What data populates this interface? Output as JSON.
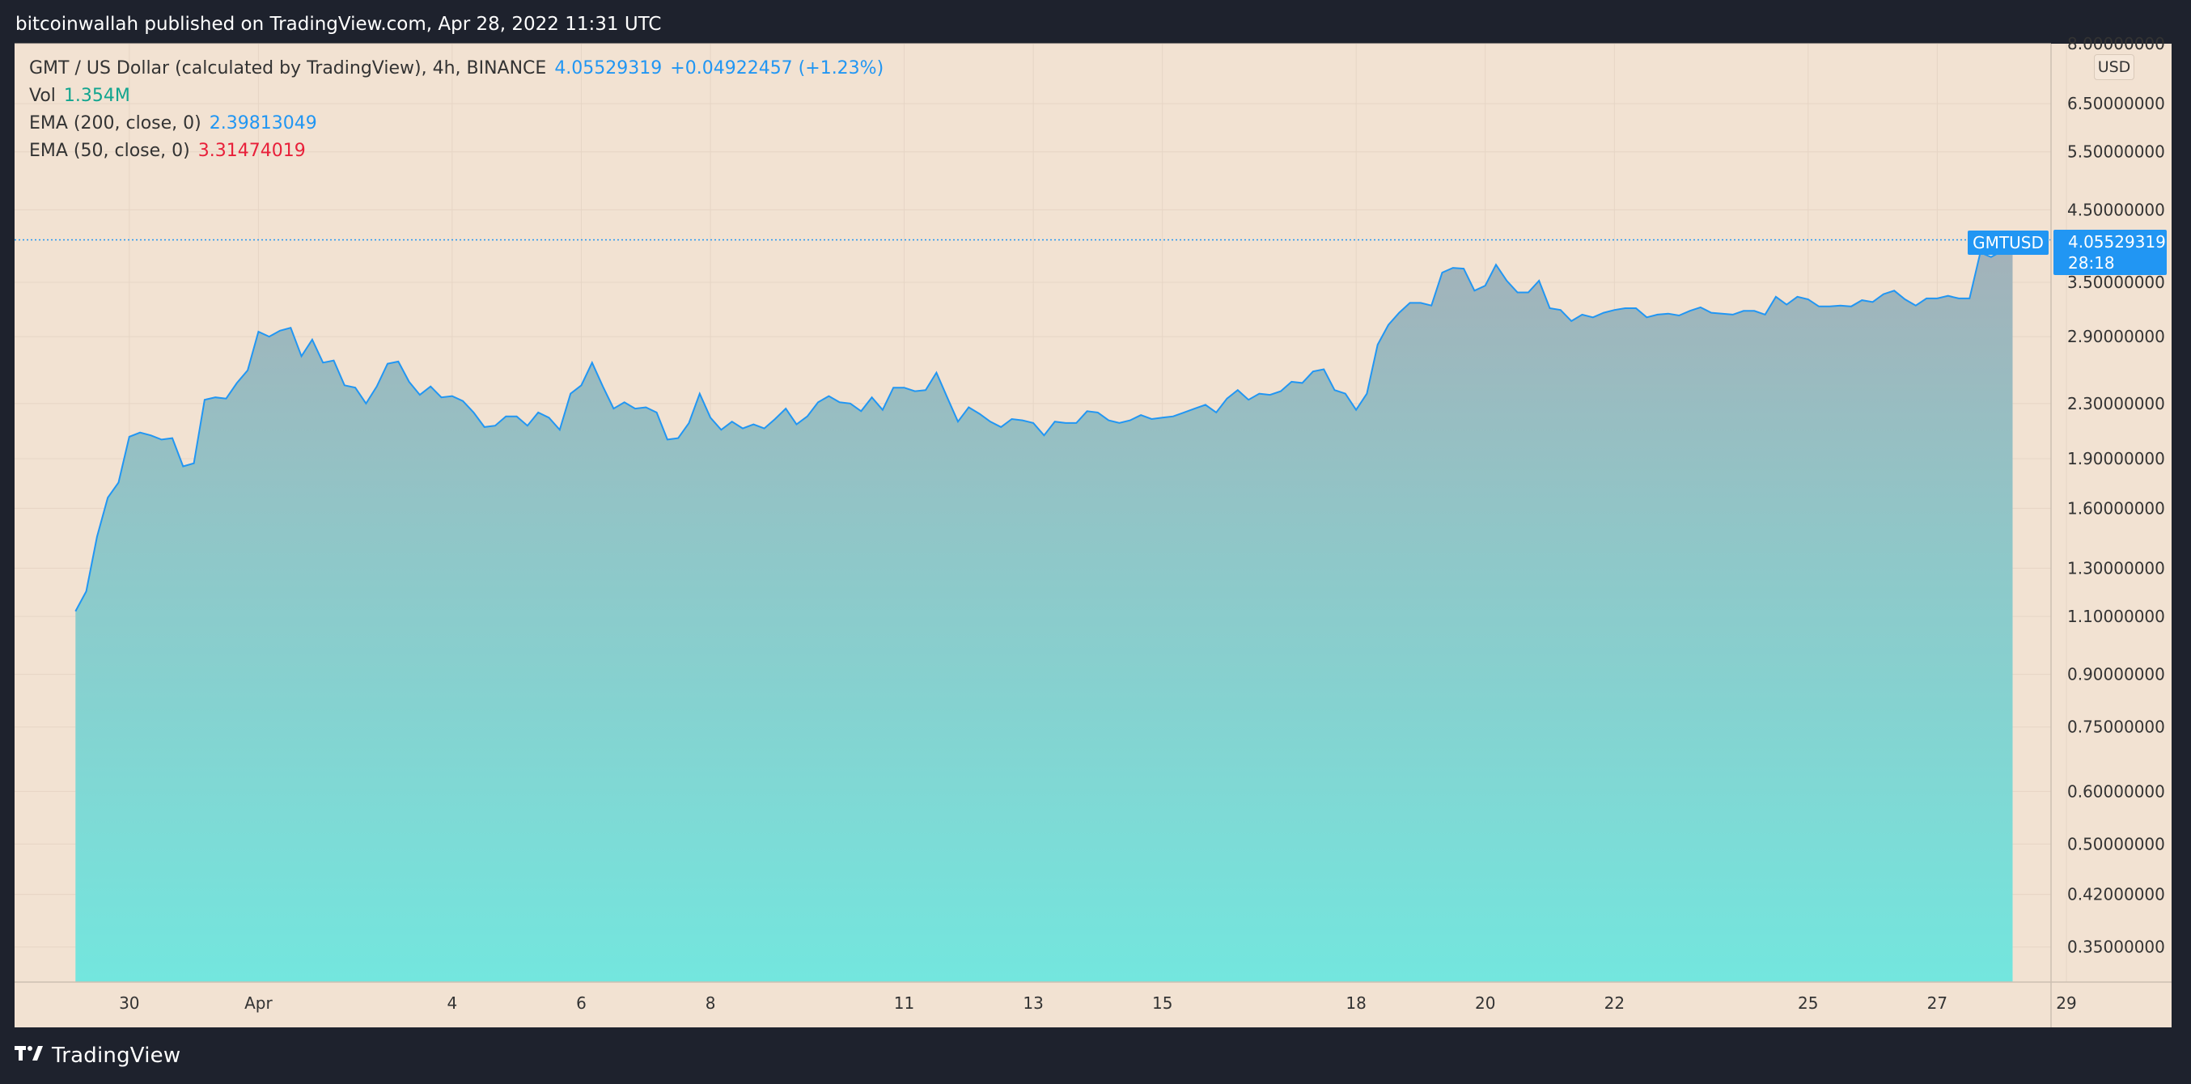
{
  "header": {
    "published_by": "bitcoinwallah published on TradingView.com, Apr 28, 2022 11:31 UTC"
  },
  "legend": {
    "symbol_line": "GMT / US Dollar (calculated by TradingView), 4h, BINANCE",
    "price": "4.05529319",
    "change": "+0.04922457 (+1.23%)",
    "vol_label": "Vol",
    "vol_value": "1.354M",
    "ema200_label": "EMA (200, close, 0)",
    "ema200_value": "2.39813049",
    "ema50_label": "EMA (50, close, 0)",
    "ema50_value": "3.31474019"
  },
  "price_axis": {
    "currency_button": "USD",
    "ticks": [
      "8.00000000",
      "6.50000000",
      "5.50000000",
      "4.50000000",
      "3.50000000",
      "2.90000000",
      "2.30000000",
      "1.90000000",
      "1.60000000",
      "1.30000000",
      "1.10000000",
      "0.90000000",
      "0.75000000",
      "0.60000000",
      "0.50000000",
      "0.42000000",
      "0.35000000"
    ]
  },
  "time_axis": {
    "ticks": [
      "30",
      "Apr",
      "4",
      "6",
      "8",
      "11",
      "13",
      "15",
      "18",
      "20",
      "22",
      "25",
      "27",
      "29"
    ]
  },
  "last_price": {
    "symbol": "GMTUSD",
    "price": "4.05529319",
    "countdown": "28:18"
  },
  "colors": {
    "background": "#f2e2d2",
    "line": "#2196f3",
    "area_top": "#a3b1b9",
    "area_bottom": "#73e6de",
    "frame": "#1e222d",
    "ema200": "#2196f3",
    "ema50": "#e8203a",
    "volume": "#12a58f"
  },
  "footer": {
    "brand": "TradingView",
    "logo_icon": "tradingview-logo-icon"
  },
  "chart_data": {
    "type": "area",
    "title": "GMT / US Dollar (calculated by TradingView), 4h, BINANCE",
    "y_scale": "log",
    "ylim": [
      0.31,
      8.0
    ],
    "x_range": [
      "2022-03-29",
      "2022-04-29"
    ],
    "x_format": "date-time",
    "series": [
      {
        "name": "GMTUSD",
        "points": [
          [
            "2022-03-29 04:00",
            1.12
          ],
          [
            "2022-03-29 08:00",
            1.2
          ],
          [
            "2022-03-29 12:00",
            1.45
          ],
          [
            "2022-03-29 16:00",
            1.66
          ],
          [
            "2022-03-29 20:00",
            1.75
          ],
          [
            "2022-03-30 00:00",
            2.05
          ],
          [
            "2022-03-30 04:00",
            2.08
          ],
          [
            "2022-03-30 08:00",
            2.06
          ],
          [
            "2022-03-30 12:00",
            2.03
          ],
          [
            "2022-03-30 16:00",
            2.04
          ],
          [
            "2022-03-30 20:00",
            1.85
          ],
          [
            "2022-03-31 00:00",
            1.87
          ],
          [
            "2022-03-31 04:00",
            2.33
          ],
          [
            "2022-03-31 08:00",
            2.35
          ],
          [
            "2022-03-31 12:00",
            2.34
          ],
          [
            "2022-03-31 16:00",
            2.47
          ],
          [
            "2022-03-31 20:00",
            2.58
          ],
          [
            "2022-04-01 00:00",
            2.95
          ],
          [
            "2022-04-01 04:00",
            2.9
          ],
          [
            "2022-04-01 08:00",
            2.96
          ],
          [
            "2022-04-01 12:00",
            2.99
          ],
          [
            "2022-04-01 16:00",
            2.71
          ],
          [
            "2022-04-01 20:00",
            2.87
          ],
          [
            "2022-04-02 00:00",
            2.65
          ],
          [
            "2022-04-02 04:00",
            2.67
          ],
          [
            "2022-04-02 08:00",
            2.45
          ],
          [
            "2022-04-02 12:00",
            2.43
          ],
          [
            "2022-04-02 16:00",
            2.3
          ],
          [
            "2022-04-02 20:00",
            2.44
          ],
          [
            "2022-04-03 00:00",
            2.64
          ],
          [
            "2022-04-03 04:00",
            2.66
          ],
          [
            "2022-04-03 08:00",
            2.48
          ],
          [
            "2022-04-03 12:00",
            2.37
          ],
          [
            "2022-04-03 16:00",
            2.44
          ],
          [
            "2022-04-03 20:00",
            2.35
          ],
          [
            "2022-04-04 00:00",
            2.36
          ],
          [
            "2022-04-04 04:00",
            2.32
          ],
          [
            "2022-04-04 08:00",
            2.23
          ],
          [
            "2022-04-04 12:00",
            2.12
          ],
          [
            "2022-04-04 16:00",
            2.13
          ],
          [
            "2022-04-04 20:00",
            2.2
          ],
          [
            "2022-04-05 00:00",
            2.2
          ],
          [
            "2022-04-05 04:00",
            2.13
          ],
          [
            "2022-04-05 08:00",
            2.23
          ],
          [
            "2022-04-05 12:00",
            2.19
          ],
          [
            "2022-04-05 16:00",
            2.1
          ],
          [
            "2022-04-05 20:00",
            2.38
          ],
          [
            "2022-04-06 00:00",
            2.45
          ],
          [
            "2022-04-06 04:00",
            2.65
          ],
          [
            "2022-04-06 08:00",
            2.44
          ],
          [
            "2022-04-06 12:00",
            2.26
          ],
          [
            "2022-04-06 16:00",
            2.31
          ],
          [
            "2022-04-06 20:00",
            2.26
          ],
          [
            "2022-04-07 00:00",
            2.27
          ],
          [
            "2022-04-07 04:00",
            2.23
          ],
          [
            "2022-04-07 08:00",
            2.03
          ],
          [
            "2022-04-07 12:00",
            2.04
          ],
          [
            "2022-04-07 16:00",
            2.15
          ],
          [
            "2022-04-07 20:00",
            2.38
          ],
          [
            "2022-04-08 00:00",
            2.19
          ],
          [
            "2022-04-08 04:00",
            2.1
          ],
          [
            "2022-04-08 08:00",
            2.16
          ],
          [
            "2022-04-08 12:00",
            2.11
          ],
          [
            "2022-04-08 16:00",
            2.14
          ],
          [
            "2022-04-08 20:00",
            2.11
          ],
          [
            "2022-04-09 00:00",
            2.18
          ],
          [
            "2022-04-09 04:00",
            2.26
          ],
          [
            "2022-04-09 08:00",
            2.14
          ],
          [
            "2022-04-09 12:00",
            2.2
          ],
          [
            "2022-04-09 16:00",
            2.31
          ],
          [
            "2022-04-09 20:00",
            2.36
          ],
          [
            "2022-04-10 00:00",
            2.31
          ],
          [
            "2022-04-10 04:00",
            2.3
          ],
          [
            "2022-04-10 08:00",
            2.24
          ],
          [
            "2022-04-10 12:00",
            2.35
          ],
          [
            "2022-04-10 16:00",
            2.25
          ],
          [
            "2022-04-10 20:00",
            2.43
          ],
          [
            "2022-04-11 00:00",
            2.43
          ],
          [
            "2022-04-11 04:00",
            2.4
          ],
          [
            "2022-04-11 08:00",
            2.41
          ],
          [
            "2022-04-11 12:00",
            2.56
          ],
          [
            "2022-04-11 16:00",
            2.35
          ],
          [
            "2022-04-11 20:00",
            2.16
          ],
          [
            "2022-04-12 00:00",
            2.27
          ],
          [
            "2022-04-12 04:00",
            2.22
          ],
          [
            "2022-04-12 08:00",
            2.16
          ],
          [
            "2022-04-12 12:00",
            2.12
          ],
          [
            "2022-04-12 16:00",
            2.18
          ],
          [
            "2022-04-12 20:00",
            2.17
          ],
          [
            "2022-04-13 00:00",
            2.15
          ],
          [
            "2022-04-13 04:00",
            2.06
          ],
          [
            "2022-04-13 08:00",
            2.16
          ],
          [
            "2022-04-13 12:00",
            2.15
          ],
          [
            "2022-04-13 16:00",
            2.15
          ],
          [
            "2022-04-13 20:00",
            2.24
          ],
          [
            "2022-04-14 00:00",
            2.23
          ],
          [
            "2022-04-14 04:00",
            2.17
          ],
          [
            "2022-04-14 08:00",
            2.15
          ],
          [
            "2022-04-14 12:00",
            2.17
          ],
          [
            "2022-04-14 16:00",
            2.21
          ],
          [
            "2022-04-14 20:00",
            2.18
          ],
          [
            "2022-04-15 00:00",
            2.19
          ],
          [
            "2022-04-15 04:00",
            2.2
          ],
          [
            "2022-04-15 08:00",
            2.23
          ],
          [
            "2022-04-15 12:00",
            2.26
          ],
          [
            "2022-04-15 16:00",
            2.29
          ],
          [
            "2022-04-15 20:00",
            2.23
          ],
          [
            "2022-04-16 00:00",
            2.34
          ],
          [
            "2022-04-16 04:00",
            2.41
          ],
          [
            "2022-04-16 08:00",
            2.33
          ],
          [
            "2022-04-16 12:00",
            2.38
          ],
          [
            "2022-04-16 16:00",
            2.37
          ],
          [
            "2022-04-16 20:00",
            2.4
          ],
          [
            "2022-04-17 00:00",
            2.48
          ],
          [
            "2022-04-17 04:00",
            2.47
          ],
          [
            "2022-04-17 08:00",
            2.57
          ],
          [
            "2022-04-17 12:00",
            2.59
          ],
          [
            "2022-04-17 16:00",
            2.41
          ],
          [
            "2022-04-17 20:00",
            2.38
          ],
          [
            "2022-04-18 00:00",
            2.25
          ],
          [
            "2022-04-18 04:00",
            2.38
          ],
          [
            "2022-04-18 08:00",
            2.82
          ],
          [
            "2022-04-18 12:00",
            3.02
          ],
          [
            "2022-04-18 16:00",
            3.15
          ],
          [
            "2022-04-18 20:00",
            3.26
          ],
          [
            "2022-04-19 00:00",
            3.26
          ],
          [
            "2022-04-19 04:00",
            3.23
          ],
          [
            "2022-04-19 08:00",
            3.62
          ],
          [
            "2022-04-19 12:00",
            3.68
          ],
          [
            "2022-04-19 16:00",
            3.67
          ],
          [
            "2022-04-19 20:00",
            3.4
          ],
          [
            "2022-04-20 00:00",
            3.46
          ],
          [
            "2022-04-20 04:00",
            3.72
          ],
          [
            "2022-04-20 08:00",
            3.52
          ],
          [
            "2022-04-20 12:00",
            3.38
          ],
          [
            "2022-04-20 16:00",
            3.38
          ],
          [
            "2022-04-20 20:00",
            3.52
          ],
          [
            "2022-04-21 00:00",
            3.2
          ],
          [
            "2022-04-21 04:00",
            3.18
          ],
          [
            "2022-04-21 08:00",
            3.06
          ],
          [
            "2022-04-21 12:00",
            3.13
          ],
          [
            "2022-04-21 16:00",
            3.1
          ],
          [
            "2022-04-21 20:00",
            3.15
          ],
          [
            "2022-04-22 00:00",
            3.18
          ],
          [
            "2022-04-22 04:00",
            3.2
          ],
          [
            "2022-04-22 08:00",
            3.2
          ],
          [
            "2022-04-22 12:00",
            3.1
          ],
          [
            "2022-04-22 16:00",
            3.13
          ],
          [
            "2022-04-22 20:00",
            3.14
          ],
          [
            "2022-04-23 00:00",
            3.12
          ],
          [
            "2022-04-23 04:00",
            3.17
          ],
          [
            "2022-04-23 08:00",
            3.21
          ],
          [
            "2022-04-23 12:00",
            3.15
          ],
          [
            "2022-04-23 16:00",
            3.14
          ],
          [
            "2022-04-23 20:00",
            3.13
          ],
          [
            "2022-04-24 00:00",
            3.17
          ],
          [
            "2022-04-24 04:00",
            3.17
          ],
          [
            "2022-04-24 08:00",
            3.13
          ],
          [
            "2022-04-24 12:00",
            3.33
          ],
          [
            "2022-04-24 16:00",
            3.24
          ],
          [
            "2022-04-24 20:00",
            3.33
          ],
          [
            "2022-04-25 00:00",
            3.3
          ],
          [
            "2022-04-25 04:00",
            3.22
          ],
          [
            "2022-04-25 08:00",
            3.22
          ],
          [
            "2022-04-25 12:00",
            3.23
          ],
          [
            "2022-04-25 16:00",
            3.22
          ],
          [
            "2022-04-25 20:00",
            3.29
          ],
          [
            "2022-04-26 00:00",
            3.27
          ],
          [
            "2022-04-26 04:00",
            3.36
          ],
          [
            "2022-04-26 08:00",
            3.4
          ],
          [
            "2022-04-26 12:00",
            3.3
          ],
          [
            "2022-04-26 16:00",
            3.23
          ],
          [
            "2022-04-26 20:00",
            3.31
          ],
          [
            "2022-04-27 00:00",
            3.31
          ],
          [
            "2022-04-27 04:00",
            3.34
          ],
          [
            "2022-04-27 08:00",
            3.31
          ],
          [
            "2022-04-27 12:00",
            3.31
          ],
          [
            "2022-04-27 16:00",
            3.88
          ],
          [
            "2022-04-27 20:00",
            3.82
          ],
          [
            "2022-04-28 00:00",
            3.9
          ],
          [
            "2022-04-28 04:00",
            4.06
          ]
        ]
      }
    ],
    "last_value": 4.05529319,
    "grid": true,
    "legend_position": "top-left"
  }
}
